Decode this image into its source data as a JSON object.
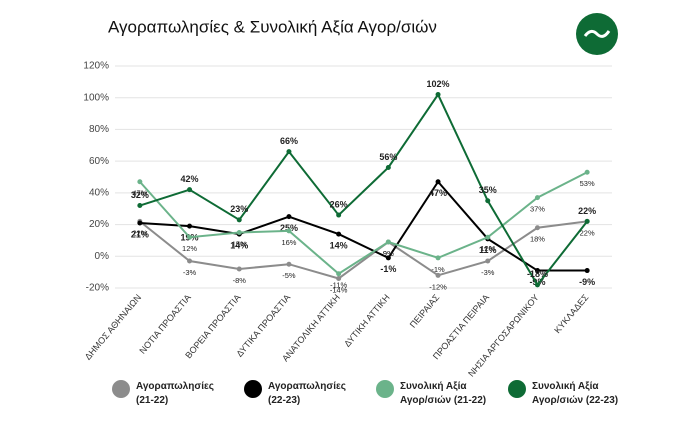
{
  "chart_data": {
    "type": "line",
    "title": "Αγοραπωλησίες & Συνολική Αξία Αγορ/σιών",
    "categories": [
      "ΔΗΜΟΣ ΑΘΗΝΑΙΩΝ",
      "ΝΟΤΙΑ ΠΡΟΑΣΤΙΑ",
      "ΒΟΡΕΙΑ ΠΡΟΑΣΤΙΑ",
      "ΔΥΤΙΚΑ ΠΡΟΑΣΤΙΑ",
      "ΑΝΑΤΟΛΙΚΗ ΑΤΤΙΚΗ",
      "ΔΥΤΙΚΗ ΑΤΤΙΚΗ",
      "ΠΕΙΡΑΙΑΣ",
      "ΠΡΟΑΣΤΙΑ ΠΕΙΡΑΙΑ",
      "ΝΗΣΙΑ ΑΡΓΟΣΑΡΩΝΙΚΟΥ",
      "ΚΥΚΛΑΔΕΣ"
    ],
    "series": [
      {
        "name": "Αγοραπωλησίες (21-22)",
        "color": "#8c8c8c",
        "values": [
          22,
          -3,
          -8,
          -5,
          -14,
          9,
          -12,
          -3,
          18,
          22
        ],
        "value_labels": [
          "22%",
          "-3%",
          "-8%",
          "-5%",
          "-14%",
          "9%",
          "-12%",
          "-3%",
          "18%",
          "22%"
        ]
      },
      {
        "name": "Αγοραπωλησίες (22-23)",
        "color": "#000000",
        "values": [
          21,
          19,
          14,
          25,
          14,
          -1,
          47,
          11,
          -9,
          -9
        ],
        "value_labels": [
          "21%",
          "19%",
          "14%",
          "25%",
          "14%",
          "-1%",
          "47%",
          "11%",
          "-9%",
          "-9%"
        ]
      },
      {
        "name": "Συνολική Αξία Αγορ/σιών (21-22)",
        "color": "#6bb38a",
        "values": [
          47,
          12,
          15,
          16,
          -11,
          9,
          -1,
          12,
          37,
          53
        ],
        "value_labels": [
          "47%",
          "12%",
          "15%",
          "16%",
          "-11%",
          "9%",
          "-1%",
          "12%",
          "37%",
          "53%"
        ]
      },
      {
        "name": "Συνολική Αξία Αγορ/σιών (22-23)",
        "color": "#0e6b35",
        "values": [
          32,
          42,
          23,
          66,
          26,
          56,
          102,
          35,
          -18,
          22
        ],
        "value_labels": [
          "32%",
          "42%",
          "23%",
          "66%",
          "26%",
          "56%",
          "102%",
          "35%",
          "-18%",
          "22%"
        ]
      }
    ],
    "ylim": [
      -20,
      120
    ],
    "yticks": [
      {
        "value": -20,
        "label": "-20%"
      },
      {
        "value": 0,
        "label": "0%"
      },
      {
        "value": 20,
        "label": "20%"
      },
      {
        "value": 40,
        "label": "40%"
      },
      {
        "value": 60,
        "label": "60%"
      },
      {
        "value": 80,
        "label": "80%"
      },
      {
        "value": 100,
        "label": "100%"
      },
      {
        "value": 120,
        "label": "120%"
      }
    ],
    "grid": true
  }
}
